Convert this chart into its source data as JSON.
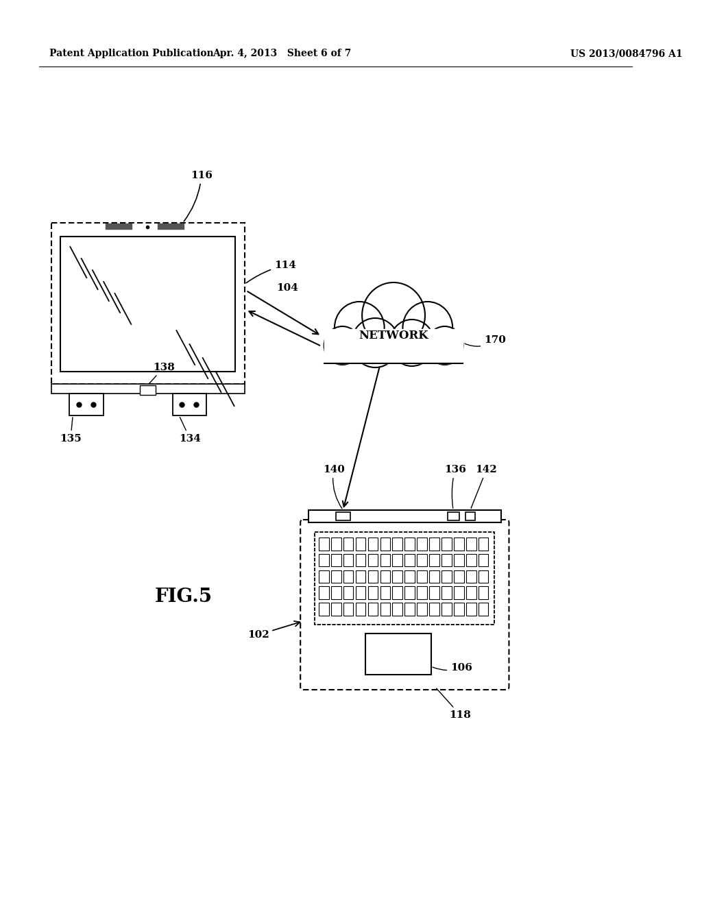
{
  "background_color": "#ffffff",
  "header_left": "Patent Application Publication",
  "header_center": "Apr. 4, 2013   Sheet 6 of 7",
  "header_right": "US 2013/0084796 A1",
  "fig_label": "FIG.5",
  "monitor_label_116": "116",
  "monitor_label_114": "114",
  "monitor_label_104": "104",
  "network_label": "NETWORK",
  "network_label_170": "170",
  "laptop_label_102": "102",
  "laptop_label_106": "106",
  "laptop_label_118": "118",
  "laptop_label_136": "136",
  "laptop_label_140": "140",
  "laptop_label_142": "142",
  "speaker_label_135": "135",
  "speaker_label_138": "138",
  "speaker_label_134": "134"
}
